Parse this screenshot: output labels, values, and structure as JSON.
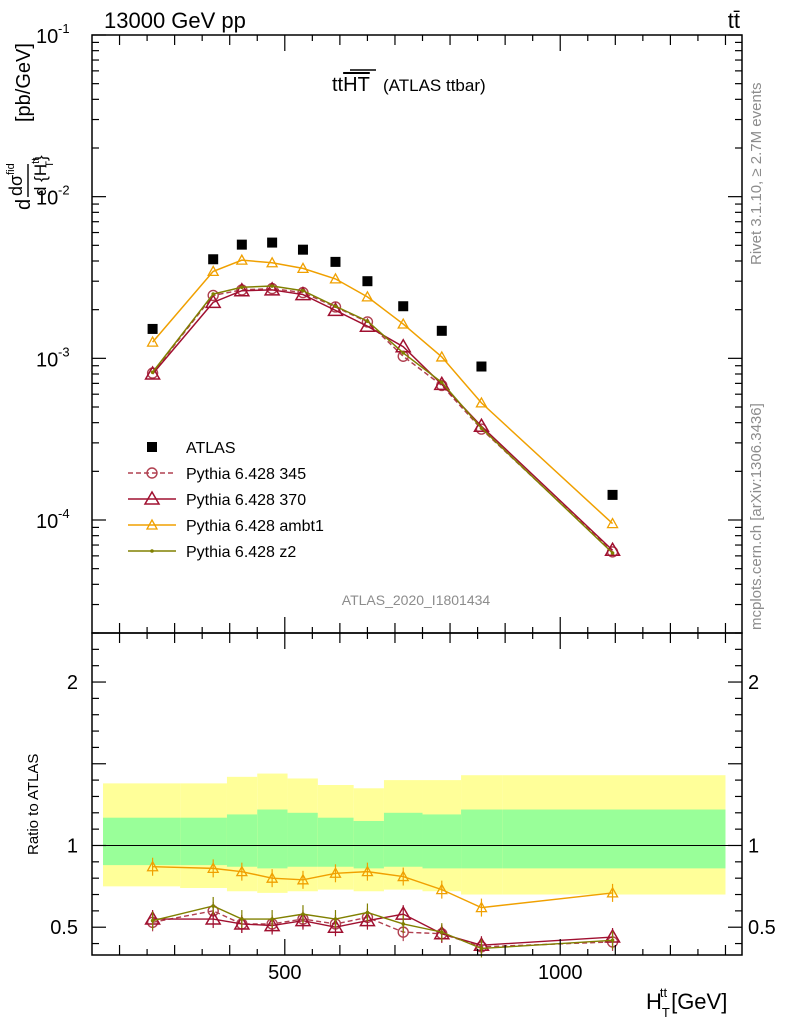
{
  "header": {
    "process": "13000 GeV pp",
    "process_tag": "tt̄"
  },
  "plot_title": {
    "main": "tt",
    "overline": "HT",
    "sub": "(ATLAS ttbar)"
  },
  "side_labels": {
    "rivet": "Rivet 3.1.10, ≥ 2.7M events",
    "mcplots": "mcplots.cern.ch [arXiv:1306.3436]"
  },
  "analysis_id": "ATLAS_2020_I1801434",
  "axes": {
    "ylabel_main": "dσ / d{H_T^tt} [pb/GeV]",
    "ylabel_ratio": "Ratio to ATLAS",
    "xlabel": "H_T^tt [GeV]"
  },
  "colors": {
    "atlas": "#000000",
    "p345": "#b04050",
    "p370": "#a01030",
    "ambt1": "#f0a000",
    "z2": "#808000",
    "band_outer": "#ffff99",
    "band_inner": "#99ff99"
  },
  "chart_data": {
    "type": "scatter",
    "x_range": [
      150,
      1330
    ],
    "y_log": true,
    "y_range": [
      2e-05,
      0.1
    ],
    "ratio_range": [
      0.33,
      2.3
    ],
    "y_ticks": [
      {
        "label": "10",
        "exp": "-1",
        "value": 0.1
      },
      {
        "label": "10",
        "exp": "-2",
        "value": 0.01
      },
      {
        "label": "10",
        "exp": "-3",
        "value": 0.001
      },
      {
        "label": "10",
        "exp": "-4",
        "value": 0.0001
      }
    ],
    "x_ticks": [
      {
        "label": "500",
        "value": 500
      },
      {
        "label": "1000",
        "value": 1000
      }
    ],
    "ratio_ticks": [
      {
        "label": "2",
        "value": 2
      },
      {
        "label": "1",
        "value": 1
      },
      {
        "label": "0.5",
        "value": 0.5
      }
    ],
    "x": [
      260,
      370,
      422,
      477,
      533,
      592,
      650,
      715,
      785,
      857,
      1095
    ],
    "bin_edges": [
      170,
      310,
      395,
      450,
      505,
      560,
      625,
      680,
      750,
      820,
      895,
      1300
    ],
    "band_outer_lo": [
      0.75,
      0.74,
      0.72,
      0.71,
      0.72,
      0.73,
      0.72,
      0.73,
      0.72,
      0.7,
      0.7
    ],
    "band_outer_hi": [
      1.38,
      1.38,
      1.42,
      1.44,
      1.41,
      1.37,
      1.35,
      1.4,
      1.4,
      1.43,
      1.43
    ],
    "band_inner_lo": [
      0.88,
      0.88,
      0.87,
      0.86,
      0.87,
      0.87,
      0.86,
      0.87,
      0.86,
      0.86,
      0.86
    ],
    "band_inner_hi": [
      1.17,
      1.17,
      1.19,
      1.22,
      1.2,
      1.17,
      1.15,
      1.2,
      1.19,
      1.22,
      1.22
    ],
    "series": [
      {
        "name": "ATLAS",
        "key": "atlas",
        "marker": "square",
        "line": "none",
        "values": [
          0.00152,
          0.0041,
          0.00505,
          0.0052,
          0.0047,
          0.00395,
          0.003,
          0.0021,
          0.00148,
          0.00089,
          0.000143
        ]
      },
      {
        "name": "Pythia 6.428 345",
        "key": "p345",
        "marker": "circle",
        "line": "dashed",
        "values": [
          0.00081,
          0.00245,
          0.00265,
          0.0027,
          0.00255,
          0.00208,
          0.00168,
          0.00103,
          0.00068,
          0.000365,
          6.35e-05
        ],
        "ratio": [
          0.53,
          0.6,
          0.52,
          0.52,
          0.55,
          0.52,
          0.56,
          0.47,
          0.46,
          0.38,
          0.41
        ]
      },
      {
        "name": "Pythia 6.428 370",
        "key": "p370",
        "marker": "triangle",
        "line": "solid",
        "values": [
          0.0008,
          0.00222,
          0.00262,
          0.00265,
          0.00248,
          0.00198,
          0.00158,
          0.00118,
          0.00069,
          0.00038,
          6.5e-05
        ],
        "ratio": [
          0.55,
          0.55,
          0.52,
          0.51,
          0.54,
          0.5,
          0.54,
          0.58,
          0.46,
          0.39,
          0.44
        ]
      },
      {
        "name": "Pythia 6.428 ambt1",
        "key": "ambt1",
        "marker": "triangle-small",
        "line": "solid",
        "values": [
          0.00126,
          0.00345,
          0.00405,
          0.0039,
          0.0036,
          0.0031,
          0.0024,
          0.00163,
          0.00102,
          0.00053,
          9.5e-05
        ],
        "ratio": [
          0.87,
          0.86,
          0.84,
          0.8,
          0.79,
          0.83,
          0.84,
          0.81,
          0.73,
          0.62,
          0.71
        ]
      },
      {
        "name": "Pythia 6.428 z2",
        "key": "z2",
        "marker": "dot",
        "line": "solid",
        "values": [
          0.00082,
          0.0025,
          0.00275,
          0.0028,
          0.00262,
          0.0021,
          0.0017,
          0.00108,
          0.00071,
          0.00037,
          6.25e-05
        ],
        "ratio": [
          0.54,
          0.63,
          0.55,
          0.55,
          0.58,
          0.55,
          0.59,
          0.52,
          0.47,
          0.37,
          0.42
        ]
      }
    ]
  }
}
